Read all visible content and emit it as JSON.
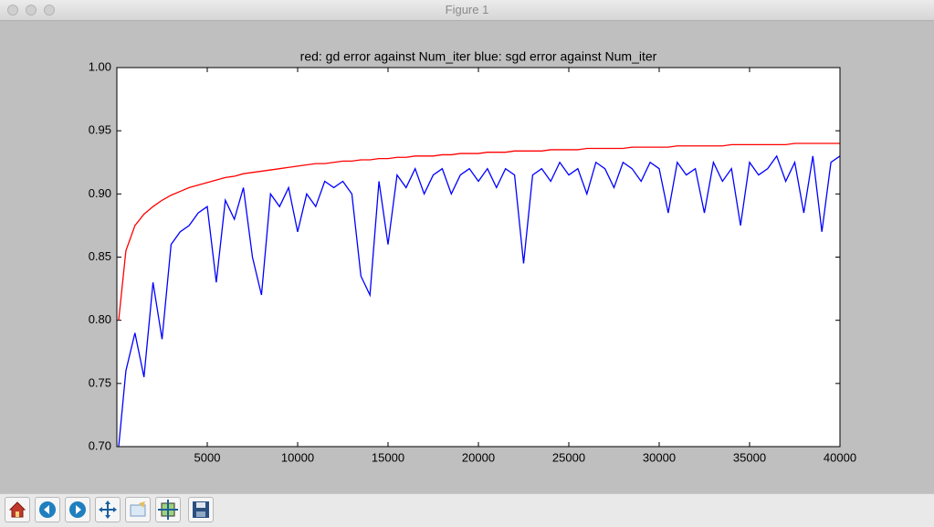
{
  "window": {
    "title": "Figure 1"
  },
  "chart_data": {
    "type": "line",
    "title": "red: gd error against Num_iter  blue: sgd error against Num_iter",
    "x": [
      100,
      500,
      1000,
      1500,
      2000,
      2500,
      3000,
      3500,
      4000,
      4500,
      5000,
      5500,
      6000,
      6500,
      7000,
      7500,
      8000,
      8500,
      9000,
      9500,
      10000,
      10500,
      11000,
      11500,
      12000,
      12500,
      13000,
      13500,
      14000,
      14500,
      15000,
      15500,
      16000,
      16500,
      17000,
      17500,
      18000,
      18500,
      19000,
      19500,
      20000,
      20500,
      21000,
      21500,
      22000,
      22500,
      23000,
      23500,
      24000,
      24500,
      25000,
      25500,
      26000,
      26500,
      27000,
      27500,
      28000,
      28500,
      29000,
      29500,
      30000,
      30500,
      31000,
      31500,
      32000,
      32500,
      33000,
      33500,
      34000,
      34500,
      35000,
      35500,
      36000,
      36500,
      37000,
      37500,
      38000,
      38500,
      39000,
      39500,
      40000
    ],
    "series": [
      {
        "color": "#ff0000",
        "values": [
          0.8,
          0.855,
          0.875,
          0.884,
          0.89,
          0.895,
          0.899,
          0.902,
          0.905,
          0.907,
          0.909,
          0.911,
          0.913,
          0.914,
          0.916,
          0.917,
          0.918,
          0.919,
          0.92,
          0.921,
          0.922,
          0.923,
          0.924,
          0.924,
          0.925,
          0.926,
          0.926,
          0.927,
          0.927,
          0.928,
          0.928,
          0.929,
          0.929,
          0.93,
          0.93,
          0.93,
          0.931,
          0.931,
          0.932,
          0.932,
          0.932,
          0.933,
          0.933,
          0.933,
          0.934,
          0.934,
          0.934,
          0.934,
          0.935,
          0.935,
          0.935,
          0.935,
          0.936,
          0.936,
          0.936,
          0.936,
          0.936,
          0.937,
          0.937,
          0.937,
          0.937,
          0.937,
          0.938,
          0.938,
          0.938,
          0.938,
          0.938,
          0.938,
          0.939,
          0.939,
          0.939,
          0.939,
          0.939,
          0.939,
          0.939,
          0.94,
          0.94,
          0.94,
          0.94,
          0.94,
          0.94
        ]
      },
      {
        "color": "#0000ff",
        "values": [
          0.7,
          0.76,
          0.79,
          0.755,
          0.83,
          0.785,
          0.86,
          0.87,
          0.875,
          0.885,
          0.89,
          0.83,
          0.895,
          0.88,
          0.905,
          0.85,
          0.82,
          0.9,
          0.89,
          0.905,
          0.87,
          0.9,
          0.89,
          0.91,
          0.905,
          0.91,
          0.9,
          0.835,
          0.82,
          0.91,
          0.86,
          0.915,
          0.905,
          0.92,
          0.9,
          0.915,
          0.92,
          0.9,
          0.915,
          0.92,
          0.91,
          0.92,
          0.905,
          0.92,
          0.915,
          0.845,
          0.915,
          0.92,
          0.91,
          0.925,
          0.915,
          0.92,
          0.9,
          0.925,
          0.92,
          0.905,
          0.925,
          0.92,
          0.91,
          0.925,
          0.92,
          0.885,
          0.925,
          0.915,
          0.92,
          0.885,
          0.925,
          0.91,
          0.92,
          0.875,
          0.925,
          0.915,
          0.92,
          0.93,
          0.91,
          0.925,
          0.885,
          0.93,
          0.87,
          0.925,
          0.93
        ]
      }
    ],
    "xlim": [
      0,
      40000
    ],
    "xticks": [
      5000,
      10000,
      15000,
      20000,
      25000,
      30000,
      35000,
      40000
    ],
    "ylim": [
      0.7,
      1.0
    ],
    "yticks": [
      {
        "value": 0.7,
        "label": "0.70"
      },
      0.75,
      {
        "value": 0.8,
        "label": "0.80"
      },
      0.85,
      {
        "value": 0.9,
        "label": "0.90"
      },
      0.95,
      {
        "value": 1.0,
        "label": "1.00"
      }
    ]
  }
}
